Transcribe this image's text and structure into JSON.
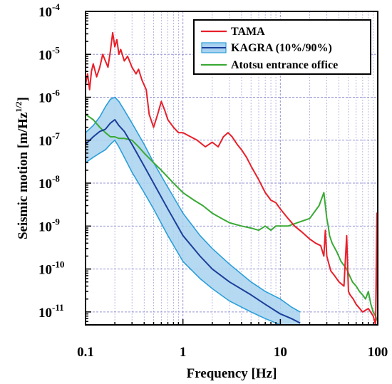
{
  "chart_data": {
    "type": "line",
    "title": "",
    "xlabel": "Frequency [Hz]",
    "ylabel": "Seismic motion [m/Hz^1/2]",
    "ylabel_parts": {
      "main": "Seismic motion [m/Hz",
      "sup": "1/2",
      "close": "]"
    },
    "x_scale": "log",
    "y_scale": "log",
    "xlim": [
      0.1,
      100
    ],
    "ylim": [
      5e-12,
      0.0001
    ],
    "x_ticks": [
      {
        "value": 0.1,
        "label": "0.1"
      },
      {
        "value": 1,
        "label": "1"
      },
      {
        "value": 10,
        "label": "10"
      },
      {
        "value": 100,
        "label": "100"
      }
    ],
    "y_ticks": [
      {
        "value": 0.0001,
        "base": "10",
        "exp": "-4"
      },
      {
        "value": 1e-05,
        "base": "10",
        "exp": "-5"
      },
      {
        "value": 1e-06,
        "base": "10",
        "exp": "-6"
      },
      {
        "value": 1e-07,
        "base": "10",
        "exp": "-7"
      },
      {
        "value": 1e-08,
        "base": "10",
        "exp": "-8"
      },
      {
        "value": 1e-09,
        "base": "10",
        "exp": "-9"
      },
      {
        "value": 1e-10,
        "base": "10",
        "exp": "-10"
      },
      {
        "value": 1e-11,
        "base": "10",
        "exp": "-11"
      }
    ],
    "grid": true,
    "legend_position": "top-right",
    "colors": {
      "tama": "#e8202a",
      "kagra_line": "#1a3f9a",
      "kagra_band_fill": "#a9d2f0",
      "kagra_band_edge": "#2b9fd8",
      "atotsu": "#3aaa35",
      "grid": "#8a8ad0"
    },
    "series": [
      {
        "name": "TAMA",
        "style": "line",
        "x": [
          0.1,
          0.105,
          0.11,
          0.115,
          0.12,
          0.13,
          0.14,
          0.15,
          0.16,
          0.17,
          0.18,
          0.19,
          0.2,
          0.21,
          0.22,
          0.23,
          0.25,
          0.27,
          0.3,
          0.33,
          0.35,
          0.38,
          0.42,
          0.45,
          0.5,
          0.55,
          0.6,
          0.65,
          0.7,
          0.8,
          0.9,
          1.0,
          1.2,
          1.4,
          1.7,
          2.0,
          2.3,
          2.6,
          2.9,
          3.2,
          3.6,
          4.0,
          4.5,
          5.0,
          6.0,
          7.0,
          8.0,
          9.0,
          10,
          12,
          14,
          17,
          20,
          23,
          26,
          28,
          29,
          30,
          31,
          33,
          36,
          40,
          45,
          48,
          50,
          52,
          56,
          60,
          70,
          80,
          90,
          95,
          98,
          100
        ],
        "y": [
          2e-06,
          3.5e-06,
          1.5e-06,
          4e-06,
          6e-06,
          3e-06,
          5e-06,
          1e-05,
          7e-06,
          5e-06,
          1.2e-05,
          3.2e-05,
          1.5e-05,
          2.2e-05,
          1e-05,
          1.3e-05,
          7e-06,
          9e-06,
          5e-06,
          3.5e-06,
          4.5e-06,
          2.5e-06,
          1.5e-06,
          4e-07,
          2e-07,
          4e-07,
          8e-07,
          5e-07,
          3e-07,
          2e-07,
          1.5e-07,
          1.5e-07,
          1.2e-07,
          1e-07,
          7e-08,
          9e-08,
          7e-08,
          1.2e-07,
          1.5e-07,
          1.2e-07,
          8e-08,
          6e-08,
          4e-08,
          2.5e-08,
          1.2e-08,
          6e-09,
          4e-09,
          3.5e-09,
          2.5e-09,
          1.5e-09,
          1e-09,
          7e-10,
          5e-10,
          4e-10,
          3.5e-10,
          2e-10,
          8e-10,
          2e-10,
          1.5e-10,
          9e-11,
          7e-11,
          5e-11,
          4e-11,
          6e-10,
          3e-11,
          2.5e-11,
          2e-11,
          1.5e-11,
          1e-11,
          1.2e-11,
          8e-12,
          5e-12,
          2e-09,
          8e-12
        ]
      },
      {
        "name": "KAGRA (10%/90%)",
        "style": "band",
        "x": [
          0.1,
          0.12,
          0.14,
          0.16,
          0.18,
          0.2,
          0.22,
          0.25,
          0.3,
          0.4,
          0.5,
          0.7,
          1.0,
          1.5,
          2.0,
          3.0,
          5.0,
          7.0,
          10,
          13,
          16
        ],
        "median": [
          8e-08,
          1.2e-07,
          1.6e-07,
          1.8e-07,
          2.5e-07,
          3e-07,
          2.2e-07,
          1.6e-07,
          8e-08,
          2.5e-08,
          1e-08,
          2.5e-09,
          6e-10,
          2e-10,
          1e-10,
          5e-11,
          2.5e-11,
          1.5e-11,
          9e-12,
          7e-12,
          5.5e-12
        ],
        "p10": [
          3e-08,
          4e-08,
          5e-08,
          6e-08,
          8e-08,
          1e-07,
          7e-08,
          4e-08,
          1.8e-08,
          6e-09,
          2.5e-09,
          6e-10,
          1.5e-10,
          6e-11,
          3.5e-11,
          1.8e-11,
          1e-11,
          7e-12,
          5e-12,
          4e-12,
          4e-12
        ],
        "p90": [
          1.5e-07,
          2.2e-07,
          3.5e-07,
          6e-07,
          9e-07,
          1e-06,
          8e-07,
          5e-07,
          2.5e-07,
          8e-08,
          3e-08,
          8e-09,
          2e-09,
          6e-10,
          3e-10,
          1.3e-10,
          5e-11,
          3e-11,
          2e-11,
          1.3e-11,
          1e-11
        ]
      },
      {
        "name": "Atotsu entrance office",
        "style": "line",
        "x": [
          0.1,
          0.12,
          0.14,
          0.16,
          0.18,
          0.2,
          0.22,
          0.25,
          0.3,
          0.35,
          0.4,
          0.5,
          0.6,
          0.8,
          1.0,
          1.3,
          1.6,
          2.0,
          2.5,
          3.0,
          4.0,
          5.0,
          6.0,
          7.0,
          8.0,
          9.0,
          10,
          12,
          15,
          20,
          25,
          28,
          29,
          30,
          31,
          32,
          34,
          38,
          42,
          48,
          50,
          55,
          60,
          65,
          70,
          75,
          80,
          85,
          90,
          95,
          100
        ],
        "y": [
          4e-07,
          3e-07,
          2e-07,
          1.5e-07,
          1.2e-07,
          1.2e-07,
          1.1e-07,
          1.1e-07,
          1e-07,
          7e-08,
          5e-08,
          3e-08,
          2e-08,
          1e-08,
          6e-09,
          4e-09,
          3e-09,
          2e-09,
          1.5e-09,
          1.2e-09,
          1e-09,
          9e-10,
          8e-10,
          1e-09,
          8e-10,
          1e-09,
          1e-09,
          1e-09,
          1.2e-09,
          1.5e-09,
          3e-09,
          6e-09,
          3e-09,
          1.5e-09,
          1e-09,
          6e-10,
          4e-10,
          2.5e-10,
          1.5e-10,
          1e-10,
          8e-11,
          5e-11,
          4e-11,
          3e-11,
          2.5e-11,
          2e-11,
          3e-11,
          1.5e-11,
          1e-11,
          8e-12,
          6e-12
        ]
      }
    ]
  }
}
